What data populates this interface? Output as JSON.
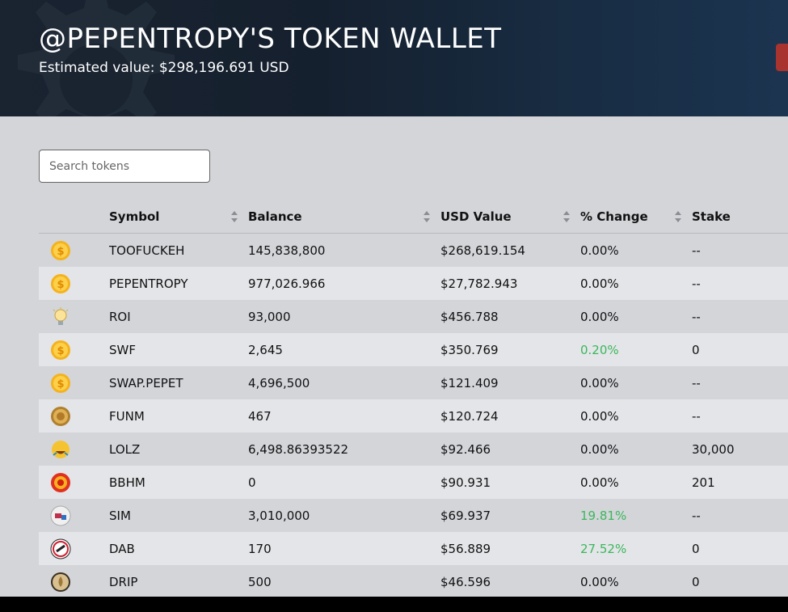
{
  "header": {
    "title": "@PEPENTROPY'S TOKEN WALLET",
    "estimated_value": "Estimated value: $298,196.691 USD"
  },
  "search": {
    "placeholder": "Search tokens"
  },
  "table": {
    "columns": [
      "",
      "Symbol",
      "Balance",
      "USD Value",
      "% Change",
      "Stake"
    ],
    "rows": [
      {
        "icon": "coin-icon",
        "symbol": "TOOFUCKEH",
        "balance": "145,838,800",
        "usd": "$268,619.154",
        "change": "0.00%",
        "stake": "--",
        "positive": false
      },
      {
        "icon": "coin-icon",
        "symbol": "PEPENTROPY",
        "balance": "977,026.966",
        "usd": "$27,782.943",
        "change": "0.00%",
        "stake": "--",
        "positive": false
      },
      {
        "icon": "lightbulb-icon",
        "symbol": "ROI",
        "balance": "93,000",
        "usd": "$456.788",
        "change": "0.00%",
        "stake": "--",
        "positive": false
      },
      {
        "icon": "coin-icon",
        "symbol": "SWF",
        "balance": "2,645",
        "usd": "$350.769",
        "change": "0.20%",
        "stake": "0",
        "positive": true
      },
      {
        "icon": "coin-icon",
        "symbol": "SWAP.PEPET",
        "balance": "4,696,500",
        "usd": "$121.409",
        "change": "0.00%",
        "stake": "--",
        "positive": false
      },
      {
        "icon": "lion-coin-icon",
        "symbol": "FUNM",
        "balance": "467",
        "usd": "$120.724",
        "change": "0.00%",
        "stake": "--",
        "positive": false
      },
      {
        "icon": "laughing-icon",
        "symbol": "LOLZ",
        "balance": "6,498.86393522",
        "usd": "$92.466",
        "change": "0.00%",
        "stake": "30,000",
        "positive": false
      },
      {
        "icon": "red-badge-icon",
        "symbol": "BBHM",
        "balance": "0",
        "usd": "$90.931",
        "change": "0.00%",
        "stake": "201",
        "positive": false
      },
      {
        "icon": "sim-logo-icon",
        "symbol": "SIM",
        "balance": "3,010,000",
        "usd": "$69.937",
        "change": "19.81%",
        "stake": "--",
        "positive": true
      },
      {
        "icon": "dab-logo-icon",
        "symbol": "DAB",
        "balance": "170",
        "usd": "$56.889",
        "change": "27.52%",
        "stake": "0",
        "positive": true
      },
      {
        "icon": "drop-coin-icon",
        "symbol": "DRIP",
        "balance": "500",
        "usd": "$46.596",
        "change": "0.00%",
        "stake": "0",
        "positive": false
      }
    ]
  },
  "colors": {
    "positive": "#3bb75d",
    "accent_red": "#a8332f"
  }
}
